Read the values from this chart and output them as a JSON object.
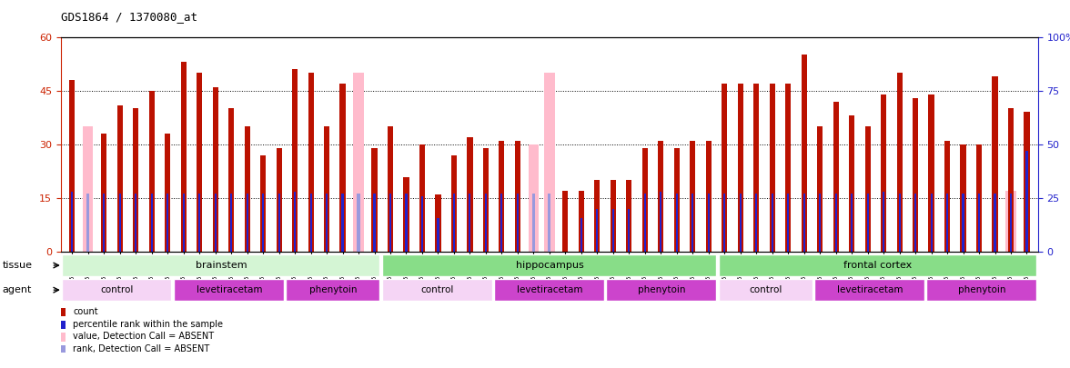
{
  "title": "GDS1864 / 1370080_at",
  "samples": [
    "GSM53440",
    "GSM53441",
    "GSM53442",
    "GSM53443",
    "GSM53444",
    "GSM53445",
    "GSM53446",
    "GSM53426",
    "GSM53427",
    "GSM53428",
    "GSM53429",
    "GSM53430",
    "GSM53431",
    "GSM53432",
    "GSM53412",
    "GSM53413",
    "GSM53414",
    "GSM53415",
    "GSM53416",
    "GSM53417",
    "GSM53447",
    "GSM53448",
    "GSM53449",
    "GSM53450",
    "GSM53451",
    "GSM53452",
    "GSM53453",
    "GSM53433",
    "GSM53434",
    "GSM53435",
    "GSM53436",
    "GSM53437",
    "GSM53438",
    "GSM53439",
    "GSM53419",
    "GSM53420",
    "GSM53421",
    "GSM53422",
    "GSM53423",
    "GSM53424",
    "GSM53425",
    "GSM53468",
    "GSM53469",
    "GSM53470",
    "GSM53471",
    "GSM53472",
    "GSM53473",
    "GSM53454",
    "GSM53455",
    "GSM53456",
    "GSM53457",
    "GSM53458",
    "GSM53459",
    "GSM53460",
    "GSM53461",
    "GSM53462",
    "GSM53463",
    "GSM53464",
    "GSM53465",
    "GSM53466",
    "GSM53467"
  ],
  "count_values": [
    48,
    0,
    33,
    41,
    40,
    45,
    33,
    53,
    50,
    46,
    40,
    35,
    27,
    29,
    51,
    50,
    35,
    47,
    0,
    29,
    35,
    21,
    30,
    16,
    27,
    32,
    29,
    31,
    31,
    0,
    0,
    17,
    17,
    20,
    20,
    20,
    29,
    31,
    29,
    31,
    31,
    47,
    47,
    47,
    47,
    47,
    55,
    35,
    42,
    38,
    35,
    44,
    50,
    43,
    44,
    31,
    30,
    30,
    49,
    40,
    39
  ],
  "absent_count_values": [
    0,
    35,
    0,
    0,
    0,
    0,
    0,
    0,
    0,
    0,
    0,
    0,
    0,
    0,
    0,
    0,
    0,
    0,
    50,
    0,
    0,
    0,
    0,
    0,
    0,
    0,
    0,
    0,
    0,
    30,
    50,
    0,
    0,
    0,
    0,
    0,
    0,
    0,
    0,
    0,
    0,
    0,
    0,
    0,
    0,
    0,
    0,
    0,
    0,
    0,
    0,
    0,
    0,
    0,
    0,
    0,
    0,
    0,
    0,
    17,
    0
  ],
  "rank_values": [
    28,
    0,
    27,
    27,
    27,
    27,
    27,
    27,
    27,
    27,
    27,
    27,
    27,
    27,
    28,
    27,
    27,
    27,
    0,
    27,
    27,
    27,
    26,
    16,
    27,
    27,
    27,
    27,
    27,
    0,
    0,
    0,
    16,
    20,
    20,
    20,
    27,
    28,
    27,
    27,
    27,
    27,
    27,
    27,
    27,
    27,
    27,
    27,
    27,
    27,
    27,
    28,
    27,
    27,
    27,
    27,
    27,
    27,
    27,
    27,
    47
  ],
  "absent_rank_values": [
    0,
    27,
    0,
    0,
    0,
    0,
    0,
    0,
    0,
    0,
    0,
    0,
    0,
    0,
    0,
    0,
    0,
    0,
    27,
    0,
    0,
    0,
    0,
    0,
    0,
    0,
    0,
    0,
    0,
    27,
    27,
    0,
    0,
    0,
    0,
    0,
    0,
    0,
    0,
    0,
    0,
    0,
    0,
    0,
    0,
    0,
    0,
    0,
    0,
    0,
    0,
    0,
    0,
    0,
    0,
    0,
    0,
    0,
    0,
    0,
    0
  ],
  "ylim_left": [
    0,
    60
  ],
  "ylim_right": [
    0,
    100
  ],
  "yticks_left": [
    0,
    15,
    30,
    45,
    60
  ],
  "yticks_right": [
    0,
    25,
    50,
    75,
    100
  ],
  "ytick_right_labels": [
    "0",
    "25",
    "50",
    "75",
    "100%"
  ],
  "bar_color_red": "#bb1100",
  "bar_color_pink": "#ffbbcc",
  "bar_color_blue": "#2222cc",
  "bar_color_lightblue": "#9999dd",
  "axis_left_color": "#cc2200",
  "axis_right_color": "#2222cc"
}
